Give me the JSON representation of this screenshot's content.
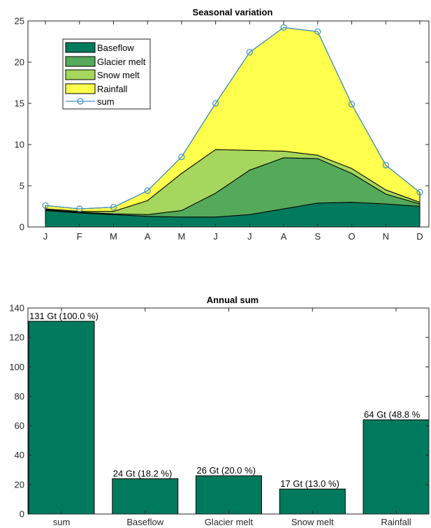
{
  "chart_data": [
    {
      "type": "area",
      "title": "Seasonal variation",
      "categories": [
        "J",
        "F",
        "M",
        "A",
        "M",
        "J",
        "J",
        "A",
        "S",
        "O",
        "N",
        "D"
      ],
      "ylim": [
        0,
        25
      ],
      "yticks": [
        0,
        5,
        10,
        15,
        20,
        25
      ],
      "stacked": true,
      "grid": false,
      "legend_position": "top-left",
      "series": [
        {
          "name": "Baseflow",
          "color": "#007a5c",
          "values": [
            2.0,
            1.7,
            1.5,
            1.3,
            1.2,
            1.2,
            1.5,
            2.2,
            2.9,
            3.0,
            2.8,
            2.5
          ]
        },
        {
          "name": "Glacier melt",
          "color": "#54a95a",
          "values": [
            0.1,
            0.1,
            0.1,
            0.2,
            0.8,
            2.9,
            5.4,
            6.2,
            5.4,
            3.5,
            1.2,
            0.3
          ]
        },
        {
          "name": "Snow melt",
          "color": "#a5d65d",
          "values": [
            0.1,
            0.1,
            0.3,
            1.7,
            4.5,
            5.3,
            2.4,
            0.8,
            0.4,
            0.6,
            0.5,
            0.2
          ]
        },
        {
          "name": "Rainfall",
          "color": "#ffff4d",
          "values": [
            0.4,
            0.3,
            0.5,
            1.2,
            2.0,
            5.6,
            11.9,
            15.0,
            15.0,
            7.8,
            3.0,
            1.2
          ]
        }
      ],
      "sum": {
        "name": "sum",
        "color": "#3d8fc9",
        "values": [
          2.6,
          2.2,
          2.4,
          4.4,
          8.5,
          15.0,
          21.2,
          24.2,
          23.7,
          14.9,
          7.5,
          4.2
        ]
      }
    },
    {
      "type": "bar",
      "title": "Annual sum",
      "categories": [
        "sum",
        "Baseflow",
        "Glacier melt",
        "Snow melt",
        "Rainfall"
      ],
      "values": [
        131,
        24,
        26,
        17,
        64
      ],
      "labels": [
        "131 Gt (100.0 %)",
        "24 Gt (18.2 %)",
        "26 Gt (20.0 %)",
        "17 Gt (13.0 %)",
        "64 Gt (48.8 %"
      ],
      "color": "#007a5c",
      "ylim": [
        0,
        140
      ],
      "yticks": [
        0,
        20,
        40,
        60,
        80,
        100,
        120,
        140
      ]
    }
  ]
}
